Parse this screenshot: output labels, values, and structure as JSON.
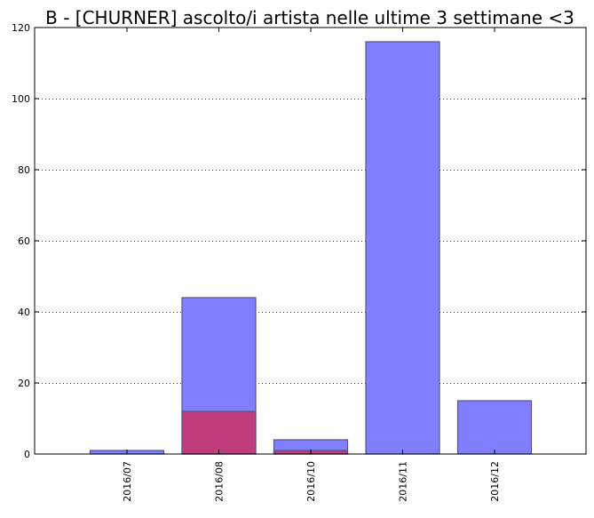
{
  "chart_data": {
    "type": "bar",
    "title": "B - [CHURNER] ascolto/i artista nelle ultime 3 settimane <3",
    "xlabel": "",
    "ylabel": "",
    "categories": [
      "2016/07",
      "2016/08",
      "2016/10",
      "2016/11",
      "2016/12"
    ],
    "series": [
      {
        "values": [
          1,
          44,
          4,
          116,
          15
        ],
        "color": "#7f7fff"
      },
      {
        "values": [
          0,
          12,
          1,
          0,
          0
        ],
        "color": "#c03c7c"
      }
    ],
    "ylim": [
      0,
      120
    ],
    "yticks": [
      0,
      20,
      40,
      60,
      80,
      100,
      120
    ],
    "ytick_labels": [
      "0",
      "20",
      "40",
      "60",
      "80",
      "100",
      "120"
    ],
    "grid": "y-dotted",
    "legend": "none",
    "colors": {
      "bar_edge": "#555588",
      "grid": "#333333",
      "axes": "#000000"
    }
  }
}
